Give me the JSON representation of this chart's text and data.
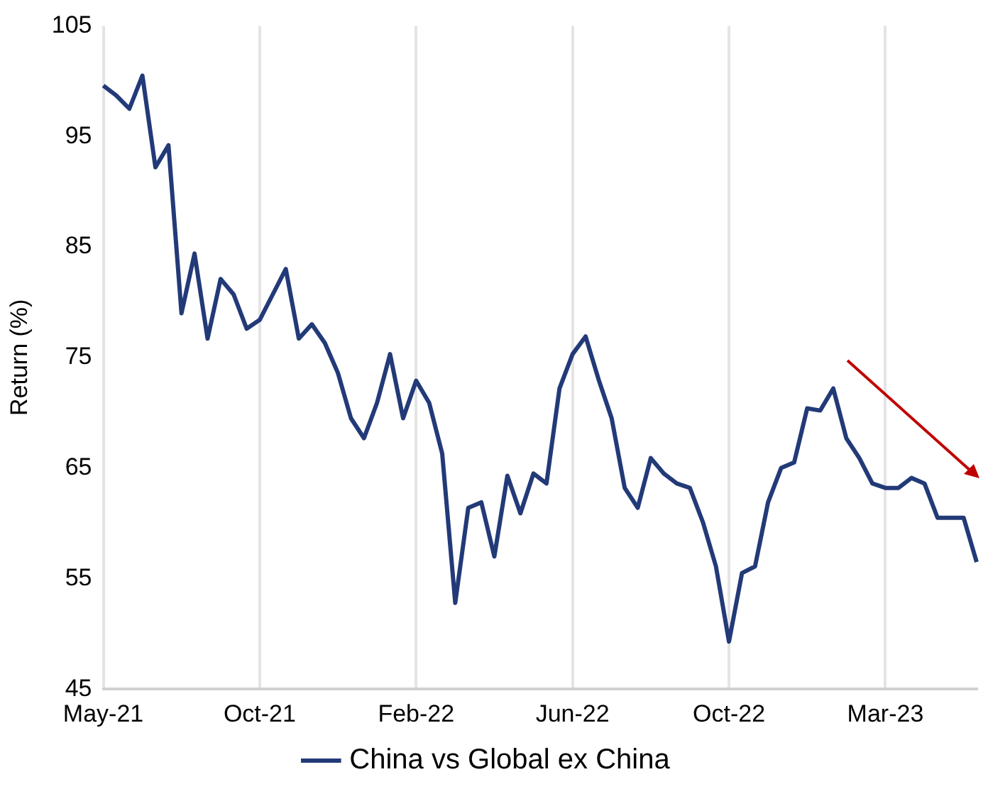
{
  "chart_data": {
    "type": "line",
    "ylabel": "Return (%)",
    "categories": [
      "May-21",
      null,
      null,
      null,
      null,
      null,
      null,
      null,
      null,
      null,
      null,
      null,
      "Oct-21",
      null,
      null,
      null,
      null,
      null,
      null,
      null,
      null,
      null,
      null,
      null,
      "Feb-22",
      null,
      null,
      null,
      null,
      null,
      null,
      null,
      null,
      null,
      null,
      null,
      "Jun-22",
      null,
      null,
      null,
      null,
      null,
      null,
      null,
      null,
      null,
      null,
      null,
      "Oct-22",
      null,
      null,
      null,
      null,
      null,
      null,
      null,
      null,
      null,
      null,
      null,
      "Mar-23",
      null,
      null,
      null,
      null,
      null,
      null,
      null
    ],
    "series": [
      {
        "name": "China vs Global ex China",
        "color": "#233a78",
        "values": [
          99.6,
          98.7,
          97.5,
          100.5,
          92.2,
          94.2,
          79,
          84.4,
          76.7,
          82.1,
          80.7,
          77.6,
          78.4,
          80.7,
          83,
          76.7,
          78,
          76.3,
          73.6,
          69.5,
          67.7,
          70.9,
          75.3,
          69.5,
          72.9,
          70.9,
          66.3,
          52.8,
          61.4,
          61.9,
          57,
          64.3,
          60.9,
          64.5,
          63.6,
          72.2,
          75.3,
          76.9,
          73,
          69.5,
          63.2,
          61.4,
          65.9,
          64.5,
          63.6,
          63.2,
          60.1,
          56.1,
          49.3,
          55.5,
          56.1,
          61.9,
          65,
          65.5,
          70.4,
          70.2,
          72.2,
          67.7,
          65.9,
          63.6,
          63.2,
          63.2,
          64.1,
          63.6,
          60.5,
          60.5,
          60.5,
          56.5
        ]
      }
    ],
    "ylim": [
      45,
      105
    ],
    "yticks": [
      45,
      55,
      65,
      75,
      85,
      95,
      105
    ],
    "grid": "x",
    "legend": "bottom",
    "marker": "none",
    "line_style": "solid"
  }
}
